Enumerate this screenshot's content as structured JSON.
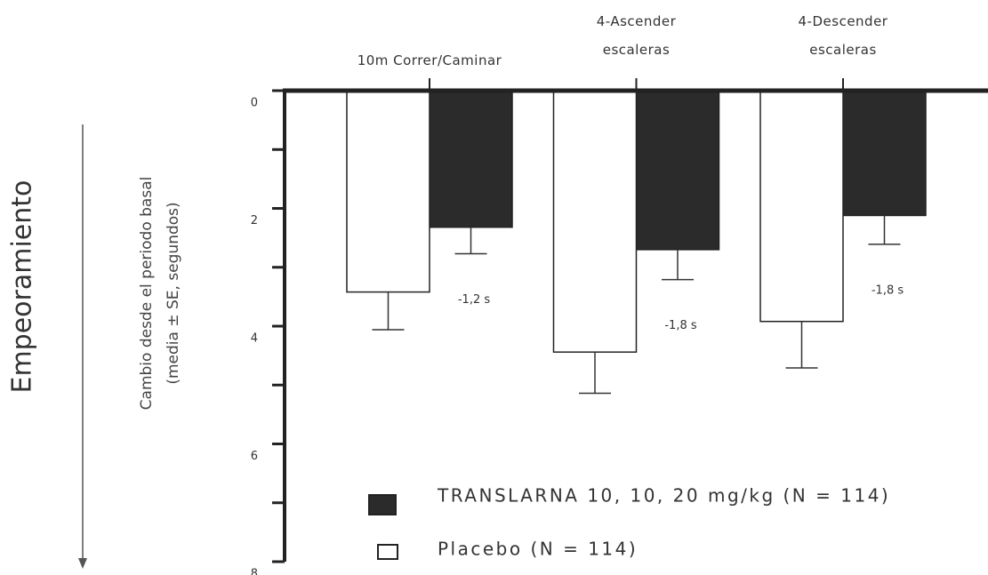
{
  "chart_data": {
    "type": "bar",
    "y_label": "Cambio desde el periodo basal\n(media ± SE, segundos)",
    "side_label": "Empeoramiento",
    "categories": [
      "10m Correr/Caminar",
      "4-Ascender\nescaleras",
      "4-Descender\nescaleras"
    ],
    "series": [
      {
        "name": "TRANSLARNA 10, 10, 20 mg/kg (N = 114)",
        "color": "#2b2b2b",
        "values": [
          2.32,
          2.7,
          2.12
        ],
        "errors": [
          0.45,
          0.51,
          0.49
        ]
      },
      {
        "name": "Placebo (N = 114)",
        "color": "#ffffff",
        "values": [
          3.42,
          4.44,
          3.92
        ],
        "errors": [
          0.64,
          0.7,
          0.79
        ]
      }
    ],
    "annotations": [
      "-1,2 s",
      "-1,8 s",
      "-1,8 s"
    ],
    "ylim": [
      0,
      8
    ],
    "yticks": [
      0,
      2,
      4,
      6,
      8
    ],
    "yminorticks": [
      1,
      3,
      5,
      7
    ],
    "invert_y": true
  }
}
